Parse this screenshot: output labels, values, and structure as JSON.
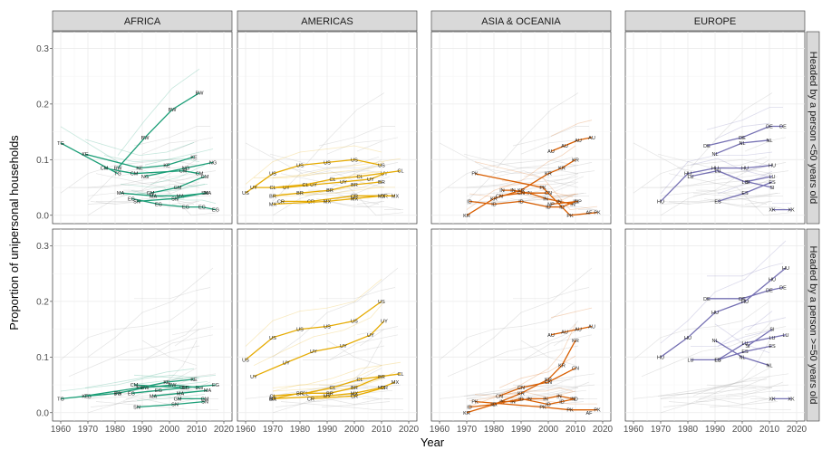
{
  "chart_data": {
    "type": "line",
    "xlabel": "Year",
    "ylabel": "Proportion of unipersonal households",
    "xlim": [
      1957,
      2023
    ],
    "ylim": [
      -0.015,
      0.33
    ],
    "x_ticks": [
      1960,
      1970,
      1980,
      1990,
      2000,
      2010,
      2020
    ],
    "y_ticks": [
      0.0,
      0.1,
      0.2,
      0.3
    ],
    "y_tick_labels": [
      "0.0",
      "0.1",
      "0.2",
      "0.3"
    ],
    "columns": [
      "AFRICA",
      "AMERICAS",
      "ASIA & OCEANIA",
      "EUROPE"
    ],
    "rows": [
      "Headed by a person <50 years old",
      "Headed by a person >=50 years old"
    ],
    "colors": {
      "AFRICA": "#1b9e77",
      "AMERICAS": "#e6ab02",
      "ASIA & OCEANIA": "#d95f02",
      "EUROPE": "#7570b3",
      "background": "#b3b3b3"
    },
    "grid": true,
    "panels": [
      {
        "column": "AFRICA",
        "row": "Headed by a person <50 years old",
        "series": [
          {
            "name": "TG",
            "x": [
              1960,
              1981
            ],
            "y": [
              0.13,
              0.075
            ]
          },
          {
            "name": "KE",
            "x": [
              1969,
              1989,
              1999,
              2009
            ],
            "y": [
              0.11,
              0.085,
              0.09,
              0.105
            ]
          },
          {
            "name": "CM",
            "x": [
              1976,
              1987,
              2005,
              2011
            ],
            "y": [
              0.085,
              0.075,
              0.08,
              0.075
            ]
          },
          {
            "name": "BW",
            "x": [
              1981,
              1991,
              2001,
              2011
            ],
            "y": [
              0.085,
              0.14,
              0.19,
              0.22
            ]
          },
          {
            "name": "NG",
            "x": [
              1991,
              2006,
              2016
            ],
            "y": [
              0.07,
              0.085,
              0.095
            ]
          },
          {
            "name": "MA",
            "x": [
              1982,
              1994,
              2004,
              2014
            ],
            "y": [
              0.04,
              0.035,
              0.035,
              0.04
            ]
          },
          {
            "name": "EG",
            "x": [
              1986,
              1996,
              2006,
              2012,
              2017
            ],
            "y": [
              0.03,
              0.02,
              0.015,
              0.015,
              0.01
            ]
          },
          {
            "name": "SN",
            "x": [
              1988,
              2002,
              2013
            ],
            "y": [
              0.025,
              0.03,
              0.04
            ]
          },
          {
            "name": "GM",
            "x": [
              1993,
              2003,
              2013
            ],
            "y": [
              0.04,
              0.05,
              0.07
            ]
          }
        ]
      },
      {
        "column": "AMERICAS",
        "row": "Headed by a person <50 years old",
        "series": [
          {
            "name": "US",
            "x": [
              1960,
              1970,
              1980,
              1990,
              2000,
              2010
            ],
            "y": [
              0.04,
              0.075,
              0.09,
              0.095,
              0.1,
              0.09
            ]
          },
          {
            "name": "UY",
            "x": [
              1963,
              1975,
              1985,
              1996,
              2006,
              2011
            ],
            "y": [
              0.05,
              0.05,
              0.055,
              0.06,
              0.065,
              0.075
            ]
          },
          {
            "name": "CL",
            "x": [
              1970,
              1982,
              1992,
              2002,
              2017
            ],
            "y": [
              0.05,
              0.055,
              0.065,
              0.07,
              0.08
            ]
          },
          {
            "name": "BR",
            "x": [
              1970,
              1980,
              1991,
              2000,
              2010
            ],
            "y": [
              0.035,
              0.04,
              0.045,
              0.055,
              0.06
            ]
          },
          {
            "name": "CR",
            "x": [
              1973,
              1984,
              2000,
              2011
            ],
            "y": [
              0.025,
              0.025,
              0.035,
              0.035
            ]
          },
          {
            "name": "MX",
            "x": [
              1970,
              1990,
              2000,
              2010,
              2015
            ],
            "y": [
              0.02,
              0.025,
              0.03,
              0.035,
              0.035
            ]
          }
        ]
      },
      {
        "column": "ASIA & OCEANIA",
        "row": "Headed by a person <50 years old",
        "series": [
          {
            "name": "KR",
            "x": [
              1970,
              1980,
              1990,
              2000,
              2005,
              2010
            ],
            "y": [
              0.0,
              0.03,
              0.045,
              0.075,
              0.085,
              0.1
            ]
          },
          {
            "name": "AU",
            "x": [
              2001,
              2006,
              2011,
              2016
            ],
            "y": [
              0.115,
              0.125,
              0.135,
              0.14
            ]
          },
          {
            "name": "PK",
            "x": [
              1973,
              1998,
              2008,
              2018
            ],
            "y": [
              0.075,
              0.05,
              0.0,
              0.005
            ]
          },
          {
            "name": "IN",
            "x": [
              1983,
              1987,
              1993,
              1999,
              2004,
              2009
            ],
            "y": [
              0.045,
              0.045,
              0.04,
              0.03,
              0.025,
              0.02
            ]
          },
          {
            "name": "ID",
            "x": [
              1971,
              1980,
              1990,
              2000,
              2005,
              2010
            ],
            "y": [
              0.025,
              0.02,
              0.025,
              0.015,
              0.015,
              0.025
            ]
          },
          {
            "name": "CN",
            "x": [
              1982,
              1990,
              2000
            ],
            "y": [
              0.035,
              0.04,
              0.04
            ]
          },
          {
            "name": "NP",
            "x": [
              2001,
              2011
            ],
            "y": [
              0.02,
              0.025
            ]
          },
          {
            "name": "AF",
            "x": [
              2015
            ],
            "y": [
              0.005
            ]
          }
        ]
      },
      {
        "column": "EUROPE",
        "row": "Headed by a person <50 years old",
        "series": [
          {
            "name": "HU",
            "x": [
              1970,
              1980,
              1990,
              2001,
              2011
            ],
            "y": [
              0.025,
              0.075,
              0.085,
              0.085,
              0.09
            ]
          },
          {
            "name": "LU",
            "x": [
              1981,
              1991,
              2001,
              2011
            ],
            "y": [
              0.07,
              0.08,
              0.06,
              0.07
            ]
          },
          {
            "name": "DE",
            "x": [
              1987,
              2000,
              2010,
              2015
            ],
            "y": [
              0.125,
              0.14,
              0.16,
              0.16
            ]
          },
          {
            "name": "NL",
            "x": [
              1990,
              2000,
              2010
            ],
            "y": [
              0.11,
              0.13,
              0.135
            ]
          },
          {
            "name": "ES",
            "x": [
              1991,
              2001,
              2011
            ],
            "y": [
              0.025,
              0.04,
              0.06
            ]
          },
          {
            "name": "SI",
            "x": [
              2002,
              2011
            ],
            "y": [
              0.06,
              0.05
            ]
          },
          {
            "name": "XK",
            "x": [
              2011,
              2018
            ],
            "y": [
              0.01,
              0.01
            ]
          }
        ]
      },
      {
        "column": "AFRICA",
        "row": "Headed by a person >=50 years old",
        "series": [
          {
            "name": "TG",
            "x": [
              1960,
              1970,
              1981
            ],
            "y": [
              0.025,
              0.03,
              0.035
            ]
          },
          {
            "name": "KE",
            "x": [
              1969,
              1989,
              1999,
              2009
            ],
            "y": [
              0.03,
              0.045,
              0.055,
              0.06
            ]
          },
          {
            "name": "BW",
            "x": [
              1981,
              1991,
              2001,
              2011
            ],
            "y": [
              0.035,
              0.045,
              0.05,
              0.045
            ]
          },
          {
            "name": "CM",
            "x": [
              1987,
              2005
            ],
            "y": [
              0.05,
              0.045
            ]
          },
          {
            "name": "EG",
            "x": [
              1986,
              1996,
              2006,
              2017
            ],
            "y": [
              0.035,
              0.04,
              0.045,
              0.05
            ]
          },
          {
            "name": "MA",
            "x": [
              1994,
              2004,
              2014
            ],
            "y": [
              0.03,
              0.035,
              0.04
            ]
          },
          {
            "name": "SN",
            "x": [
              1988,
              2002,
              2013
            ],
            "y": [
              0.01,
              0.015,
              0.02
            ]
          },
          {
            "name": "GM",
            "x": [
              2003,
              2013
            ],
            "y": [
              0.025,
              0.025
            ]
          }
        ]
      },
      {
        "column": "AMERICAS",
        "row": "Headed by a person >=50 years old",
        "series": [
          {
            "name": "US",
            "x": [
              1960,
              1970,
              1980,
              1990,
              2000,
              2010
            ],
            "y": [
              0.095,
              0.135,
              0.15,
              0.155,
              0.165,
              0.2
            ]
          },
          {
            "name": "UY",
            "x": [
              1963,
              1975,
              1985,
              1996,
              2006,
              2011
            ],
            "y": [
              0.065,
              0.09,
              0.11,
              0.12,
              0.14,
              0.165
            ]
          },
          {
            "name": "CL",
            "x": [
              1970,
              1982,
              1992,
              2002,
              2017
            ],
            "y": [
              0.03,
              0.035,
              0.045,
              0.06,
              0.07
            ]
          },
          {
            "name": "BR",
            "x": [
              1970,
              1980,
              1991,
              2000,
              2010
            ],
            "y": [
              0.025,
              0.035,
              0.035,
              0.045,
              0.065
            ]
          },
          {
            "name": "MX",
            "x": [
              1970,
              1990,
              2000,
              2010,
              2015
            ],
            "y": [
              0.025,
              0.03,
              0.035,
              0.045,
              0.055
            ]
          },
          {
            "name": "CR",
            "x": [
              1984,
              2000,
              2011
            ],
            "y": [
              0.025,
              0.03,
              0.045
            ]
          }
        ]
      },
      {
        "column": "ASIA & OCEANIA",
        "row": "Headed by a person >=50 years old",
        "series": [
          {
            "name": "KR",
            "x": [
              1970,
              1980,
              1990,
              2000,
              2005,
              2010
            ],
            "y": [
              0.0,
              0.015,
              0.035,
              0.06,
              0.085,
              0.13
            ]
          },
          {
            "name": "AU",
            "x": [
              2001,
              2006,
              2011,
              2016
            ],
            "y": [
              0.14,
              0.145,
              0.15,
              0.155
            ]
          },
          {
            "name": "PK",
            "x": [
              1973,
              1998,
              2008,
              2018
            ],
            "y": [
              0.02,
              0.01,
              0.005,
              0.005
            ]
          },
          {
            "name": "IN",
            "x": [
              1983,
              1987,
              1993,
              1999,
              2004,
              2009
            ],
            "y": [
              0.02,
              0.02,
              0.025,
              0.025,
              0.03,
              0.025
            ]
          },
          {
            "name": "ID",
            "x": [
              1971,
              1980,
              1990,
              2000,
              2005,
              2010
            ],
            "y": [
              0.01,
              0.015,
              0.025,
              0.015,
              0.02,
              0.025
            ]
          },
          {
            "name": "CN",
            "x": [
              1982,
              1990,
              2000,
              2010
            ],
            "y": [
              0.03,
              0.045,
              0.055,
              0.08
            ]
          },
          {
            "name": "AF",
            "x": [
              2015
            ],
            "y": [
              0.0
            ]
          }
        ]
      },
      {
        "column": "EUROPE",
        "row": "Headed by a person >=50 years old",
        "series": [
          {
            "name": "HU",
            "x": [
              1970,
              1980,
              1990,
              2001,
              2011,
              2016
            ],
            "y": [
              0.1,
              0.135,
              0.18,
              0.2,
              0.24,
              0.26
            ]
          },
          {
            "name": "DE",
            "x": [
              1987,
              2000,
              2010,
              2015
            ],
            "y": [
              0.205,
              0.205,
              0.22,
              0.225
            ]
          },
          {
            "name": "LU",
            "x": [
              1981,
              1991,
              2001,
              2011,
              2016
            ],
            "y": [
              0.095,
              0.095,
              0.125,
              0.135,
              0.14
            ]
          },
          {
            "name": "ES",
            "x": [
              1991,
              2001,
              2011
            ],
            "y": [
              0.095,
              0.11,
              0.12
            ]
          },
          {
            "name": "NL",
            "x": [
              1990,
              2000,
              2010
            ],
            "y": [
              0.13,
              0.1,
              0.085
            ]
          },
          {
            "name": "SI",
            "x": [
              2002,
              2011
            ],
            "y": [
              0.12,
              0.15
            ]
          },
          {
            "name": "XK",
            "x": [
              2011,
              2018
            ],
            "y": [
              0.025,
              0.025
            ]
          }
        ]
      }
    ]
  }
}
